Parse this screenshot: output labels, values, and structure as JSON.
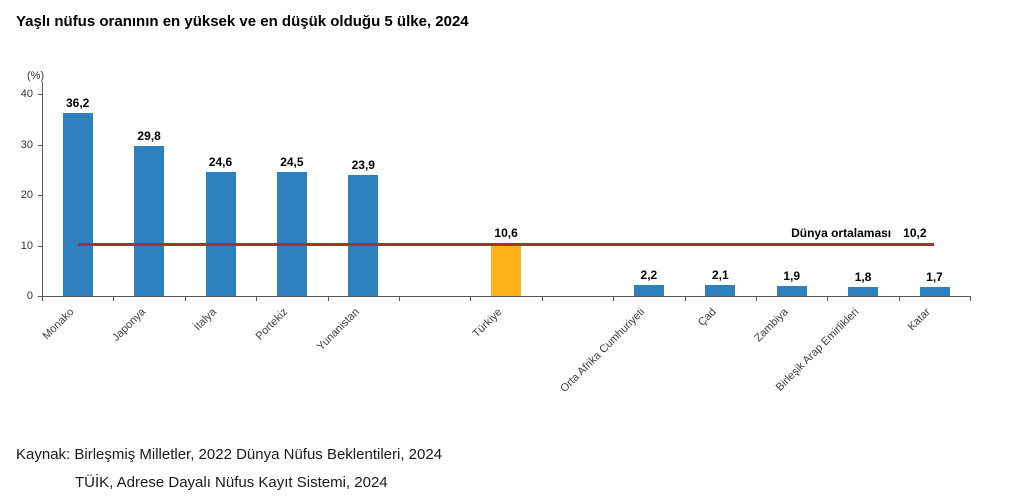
{
  "source": {
    "line1": "Kaynak: Birleşmiş Milletler, 2022 Dünya Nüfus Beklentileri, 2024",
    "line2": "TÜİK, Adrese Dayalı Nüfus Kayıt Sistemi, 2024"
  },
  "chart_data": {
    "type": "bar",
    "title": "Yaşlı nüfus oranının en yüksek ve en düşük olduğu 5 ülke, 2024",
    "unit_label": "(%)",
    "xlabel": "",
    "ylabel": "(%)",
    "ylim": [
      0,
      40
    ],
    "yticks": [
      0,
      10,
      20,
      30,
      40
    ],
    "grid": false,
    "legend": "none",
    "total_slots": 13,
    "bars": [
      {
        "name": "Monako",
        "value": 36.2,
        "label": "36,2",
        "slot": 0,
        "highlight": false
      },
      {
        "name": "Japonya",
        "value": 29.8,
        "label": "29,8",
        "slot": 1,
        "highlight": false
      },
      {
        "name": "İtalya",
        "value": 24.6,
        "label": "24,6",
        "slot": 2,
        "highlight": false
      },
      {
        "name": "Portekiz",
        "value": 24.5,
        "label": "24,5",
        "slot": 3,
        "highlight": false
      },
      {
        "name": "Yunanistan",
        "value": 23.9,
        "label": "23,9",
        "slot": 4,
        "highlight": false
      },
      {
        "name": "Türkiye",
        "value": 10.6,
        "label": "10,6",
        "slot": 6,
        "highlight": true
      },
      {
        "name": "Orta Afrika Cumhuriyeti",
        "value": 2.2,
        "label": "2,2",
        "slot": 8,
        "highlight": false
      },
      {
        "name": "Çad",
        "value": 2.1,
        "label": "2,1",
        "slot": 9,
        "highlight": false
      },
      {
        "name": "Zambiya",
        "value": 1.9,
        "label": "1,9",
        "slot": 10,
        "highlight": false
      },
      {
        "name": "Birleşik Arap Emirlikleri",
        "value": 1.8,
        "label": "1,8",
        "slot": 11,
        "highlight": false
      },
      {
        "name": "Katar",
        "value": 1.7,
        "label": "1,7",
        "slot": 12,
        "highlight": false
      }
    ],
    "average_line": {
      "label": "Dünya ortalaması",
      "value": 10.2,
      "value_label": "10,2"
    },
    "colors": {
      "bar": "#2e80be",
      "bar_highlight": "#fbb118",
      "average_line": "#a93226",
      "axis": "#595959",
      "category_text": "#3f3f3f",
      "value_text": "#000000"
    }
  }
}
